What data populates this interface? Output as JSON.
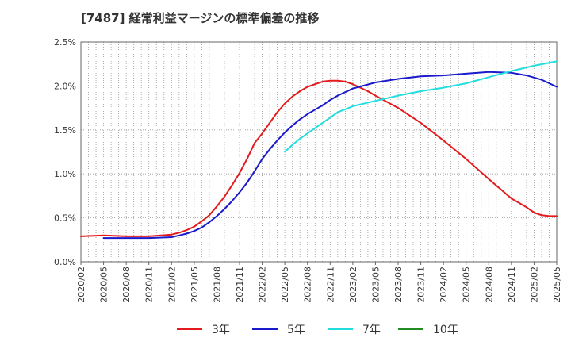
{
  "title": "[7487]  経常利益マージンの標準偏差の推移",
  "chart_data": {
    "type": "line",
    "xlabel": "",
    "ylabel": "",
    "ylim": [
      0,
      0.025
    ],
    "yticks": [
      0,
      0.005,
      0.01,
      0.015,
      0.02,
      0.025
    ],
    "ytick_labels": [
      "0.0%",
      "0.5%",
      "1.0%",
      "1.5%",
      "2.0%",
      "2.5%"
    ],
    "xticks": [
      "2020/02",
      "2020/05",
      "2020/08",
      "2020/11",
      "2021/02",
      "2021/05",
      "2021/08",
      "2021/11",
      "2022/02",
      "2022/05",
      "2022/08",
      "2022/11",
      "2023/02",
      "2023/05",
      "2023/08",
      "2023/11",
      "2024/02",
      "2024/05",
      "2024/08",
      "2024/11",
      "2025/02",
      "2025/05"
    ],
    "grid": true,
    "legend_position": "bottom",
    "series": [
      {
        "name": "3年",
        "color": "#e41a1c",
        "points": [
          [
            "2020/02",
            0.0029
          ],
          [
            "2020/05",
            0.003
          ],
          [
            "2020/08",
            0.0029
          ],
          [
            "2020/11",
            0.0029
          ],
          [
            "2021/02",
            0.0031
          ],
          [
            "2021/03",
            0.0033
          ],
          [
            "2021/04",
            0.0036
          ],
          [
            "2021/05",
            0.004
          ],
          [
            "2021/06",
            0.0046
          ],
          [
            "2021/07",
            0.0053
          ],
          [
            "2021/08",
            0.0063
          ],
          [
            "2021/09",
            0.0074
          ],
          [
            "2021/10",
            0.0087
          ],
          [
            "2021/11",
            0.0101
          ],
          [
            "2021/12",
            0.0117
          ],
          [
            "2022/01",
            0.0135
          ],
          [
            "2022/02",
            0.0146
          ],
          [
            "2022/03",
            0.0158
          ],
          [
            "2022/04",
            0.017
          ],
          [
            "2022/05",
            0.018
          ],
          [
            "2022/06",
            0.0188
          ],
          [
            "2022/07",
            0.0194
          ],
          [
            "2022/08",
            0.0199
          ],
          [
            "2022/09",
            0.0202
          ],
          [
            "2022/10",
            0.0205
          ],
          [
            "2022/11",
            0.0206
          ],
          [
            "2022/12",
            0.0206
          ],
          [
            "2023/01",
            0.0205
          ],
          [
            "2023/02",
            0.0202
          ],
          [
            "2023/03",
            0.0198
          ],
          [
            "2023/04",
            0.0194
          ],
          [
            "2023/05",
            0.0189
          ],
          [
            "2023/08",
            0.0175
          ],
          [
            "2023/11",
            0.0158
          ],
          [
            "2024/02",
            0.0138
          ],
          [
            "2024/05",
            0.0117
          ],
          [
            "2024/08",
            0.0094
          ],
          [
            "2024/11",
            0.0072
          ],
          [
            "2025/01",
            0.0062
          ],
          [
            "2025/02",
            0.0056
          ],
          [
            "2025/03",
            0.0053
          ],
          [
            "2025/04",
            0.0052
          ],
          [
            "2025/05",
            0.0052
          ]
        ]
      },
      {
        "name": "5年",
        "color": "#1a1acc",
        "points": [
          [
            "2020/05",
            0.0027
          ],
          [
            "2020/08",
            0.0027
          ],
          [
            "2020/11",
            0.0027
          ],
          [
            "2021/02",
            0.0028
          ],
          [
            "2021/03",
            0.003
          ],
          [
            "2021/04",
            0.0032
          ],
          [
            "2021/05",
            0.0035
          ],
          [
            "2021/06",
            0.0039
          ],
          [
            "2021/07",
            0.0045
          ],
          [
            "2021/08",
            0.0052
          ],
          [
            "2021/09",
            0.006
          ],
          [
            "2021/10",
            0.0069
          ],
          [
            "2021/11",
            0.0079
          ],
          [
            "2021/12",
            0.009
          ],
          [
            "2022/01",
            0.0103
          ],
          [
            "2022/02",
            0.0117
          ],
          [
            "2022/03",
            0.0128
          ],
          [
            "2022/04",
            0.0138
          ],
          [
            "2022/05",
            0.0147
          ],
          [
            "2022/06",
            0.0155
          ],
          [
            "2022/07",
            0.0162
          ],
          [
            "2022/08",
            0.0168
          ],
          [
            "2022/09",
            0.0173
          ],
          [
            "2022/10",
            0.0178
          ],
          [
            "2022/11",
            0.0184
          ],
          [
            "2022/12",
            0.0189
          ],
          [
            "2023/01",
            0.0193
          ],
          [
            "2023/02",
            0.0197
          ],
          [
            "2023/05",
            0.0204
          ],
          [
            "2023/08",
            0.0208
          ],
          [
            "2023/11",
            0.0211
          ],
          [
            "2024/02",
            0.0212
          ],
          [
            "2024/05",
            0.0214
          ],
          [
            "2024/08",
            0.0216
          ],
          [
            "2024/11",
            0.0215
          ],
          [
            "2025/01",
            0.0212
          ],
          [
            "2025/03",
            0.0207
          ],
          [
            "2025/05",
            0.0199
          ]
        ]
      },
      {
        "name": "7年",
        "color": "#22dddd",
        "points": [
          [
            "2022/05",
            0.0125
          ],
          [
            "2022/06",
            0.0133
          ],
          [
            "2022/07",
            0.014
          ],
          [
            "2022/08",
            0.0146
          ],
          [
            "2022/09",
            0.0152
          ],
          [
            "2022/10",
            0.0158
          ],
          [
            "2022/11",
            0.0164
          ],
          [
            "2022/12",
            0.017
          ],
          [
            "2023/02",
            0.0177
          ],
          [
            "2023/05",
            0.0183
          ],
          [
            "2023/08",
            0.0189
          ],
          [
            "2023/11",
            0.0194
          ],
          [
            "2024/02",
            0.0198
          ],
          [
            "2024/05",
            0.0203
          ],
          [
            "2024/08",
            0.021
          ],
          [
            "2024/11",
            0.0217
          ],
          [
            "2025/02",
            0.0223
          ],
          [
            "2025/05",
            0.0228
          ]
        ]
      },
      {
        "name": "10年",
        "color": "#228b22",
        "points": []
      }
    ]
  }
}
